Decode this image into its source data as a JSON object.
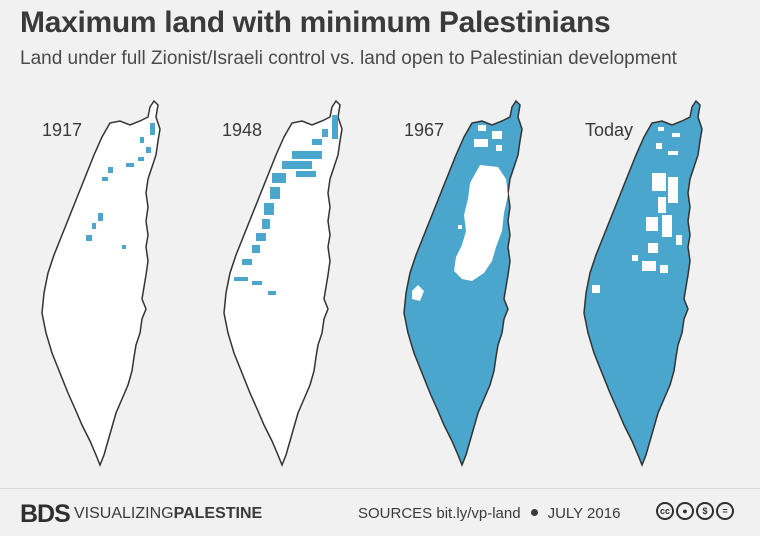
{
  "title": "Maximum land with minimum Palestinians",
  "subtitle": "Land under full Zionist/Israeli control vs. land open to Palestinian development",
  "colors": {
    "israeli_control": "#4aa6cd",
    "palestinian_open": "#ffffff",
    "outline": "#333333",
    "background": "#f1f1f1"
  },
  "maps": [
    {
      "year": "1917"
    },
    {
      "year": "1948"
    },
    {
      "year": "1967"
    },
    {
      "year": "Today"
    }
  ],
  "footer": {
    "logo": "BDS",
    "brand_plain": "VISUALIZING",
    "brand_bold": "PALESTINE",
    "sources_label": "SOURCES",
    "sources_link": "bit.ly/vp-land",
    "date": "JULY 2016",
    "license_icons": [
      "cc-icon",
      "by-icon",
      "nc-icon",
      "nd-icon"
    ]
  }
}
